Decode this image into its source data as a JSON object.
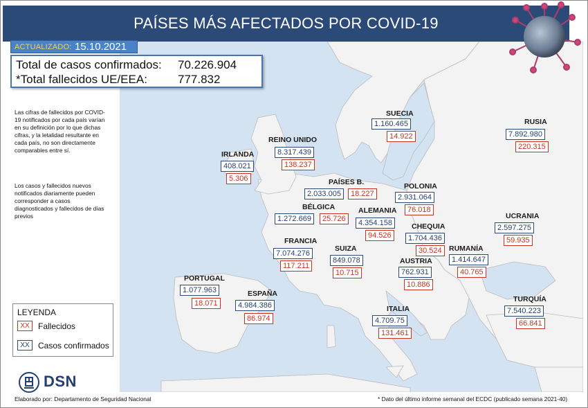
{
  "header": {
    "title": "PAÍSES MÁS AFECTADOS POR COVID-19"
  },
  "updated": {
    "label": "ACTUALIZADO:",
    "date": "15.10.2021"
  },
  "totals": {
    "confirmed_label": "Total de casos confirmados:",
    "confirmed_value": "70.226.904",
    "deaths_label": "*Total fallecidos UE/EEA:",
    "deaths_value": "777.832"
  },
  "notes": {
    "note1": "Las cifras de fallecidos por COVID-19 notificados por cada país varían en su definición por lo que dichas cifras, y la letalidad resultante en cada país, no son directamente comparables entre sí.",
    "note2": "Los casos y fallecidos nuevos notificados diariamente pueden corresponder a casos diagnosticados y fallecidos de días previos"
  },
  "legend": {
    "title": "LEYENDA",
    "deaths_symbol": "XX",
    "deaths_label": "Fallecidos",
    "cases_symbol": "XX",
    "cases_label": "Casos confirmados"
  },
  "colors": {
    "header": "#2b4a78",
    "cases": "#243f73",
    "deaths": "#c8321e",
    "sea": "#d3e3f2",
    "land": "#f3f3f3",
    "border": "#bcbcbc"
  },
  "icons": {
    "logo": "dsn-emblem",
    "virus": "virus-illustration"
  },
  "logo": {
    "text": "DSN"
  },
  "credit": "Elaborado por: Departamento de Seguridad Nacional",
  "footnote": "* Dato del último informe semanal del ECDC (publicado semana 2021-40)",
  "countries": [
    {
      "id": "suecia",
      "name": "SUECIA",
      "cases": "1.160.465",
      "deaths": "14.922"
    },
    {
      "id": "rusia",
      "name": "RUSIA",
      "cases": "7.892.980",
      "deaths": "220.315"
    },
    {
      "id": "irlanda",
      "name": "IRLANDA",
      "cases": "408.021",
      "deaths": "5.306"
    },
    {
      "id": "reino-unido",
      "name": "REINO UNIDO",
      "cases": "8.317.439",
      "deaths": "138.237"
    },
    {
      "id": "paises-bajos",
      "name": "PAÍSES B.",
      "cases": "2.033.005",
      "deaths": "18.227"
    },
    {
      "id": "polonia",
      "name": "POLONIA",
      "cases": "2.931.064",
      "deaths": "76.018"
    },
    {
      "id": "belgica",
      "name": "BÉLGICA",
      "cases": "1.272.669",
      "deaths": "25.726"
    },
    {
      "id": "alemania",
      "name": "ALEMANIA",
      "cases": "4.354.158",
      "deaths": "94.526"
    },
    {
      "id": "ucrania",
      "name": "UCRANIA",
      "cases": "2.597.275",
      "deaths": "59.935"
    },
    {
      "id": "chequia",
      "name": "CHEQUIA",
      "cases": "1.704.436",
      "deaths": "30.524"
    },
    {
      "id": "francia",
      "name": "FRANCIA",
      "cases": "7.074.276",
      "deaths": "117.211"
    },
    {
      "id": "suiza",
      "name": "SUIZA",
      "cases": "849.078",
      "deaths": "10.715"
    },
    {
      "id": "rumania",
      "name": "RUMANÍA",
      "cases": "1.414.647",
      "deaths": "40.765"
    },
    {
      "id": "austria",
      "name": "AUSTRIA",
      "cases": "762.931",
      "deaths": "10.886"
    },
    {
      "id": "portugal",
      "name": "PORTUGAL",
      "cases": "1.077.963",
      "deaths": "18.071"
    },
    {
      "id": "espana",
      "name": "ESPAÑA",
      "cases": "4.984.386",
      "deaths": "86.974"
    },
    {
      "id": "turquia",
      "name": "TURQUÍA",
      "cases": "7.540.223",
      "deaths": "66.841"
    },
    {
      "id": "italia",
      "name": "ITALIA",
      "cases": "4.709.75",
      "deaths": "131.461"
    }
  ]
}
